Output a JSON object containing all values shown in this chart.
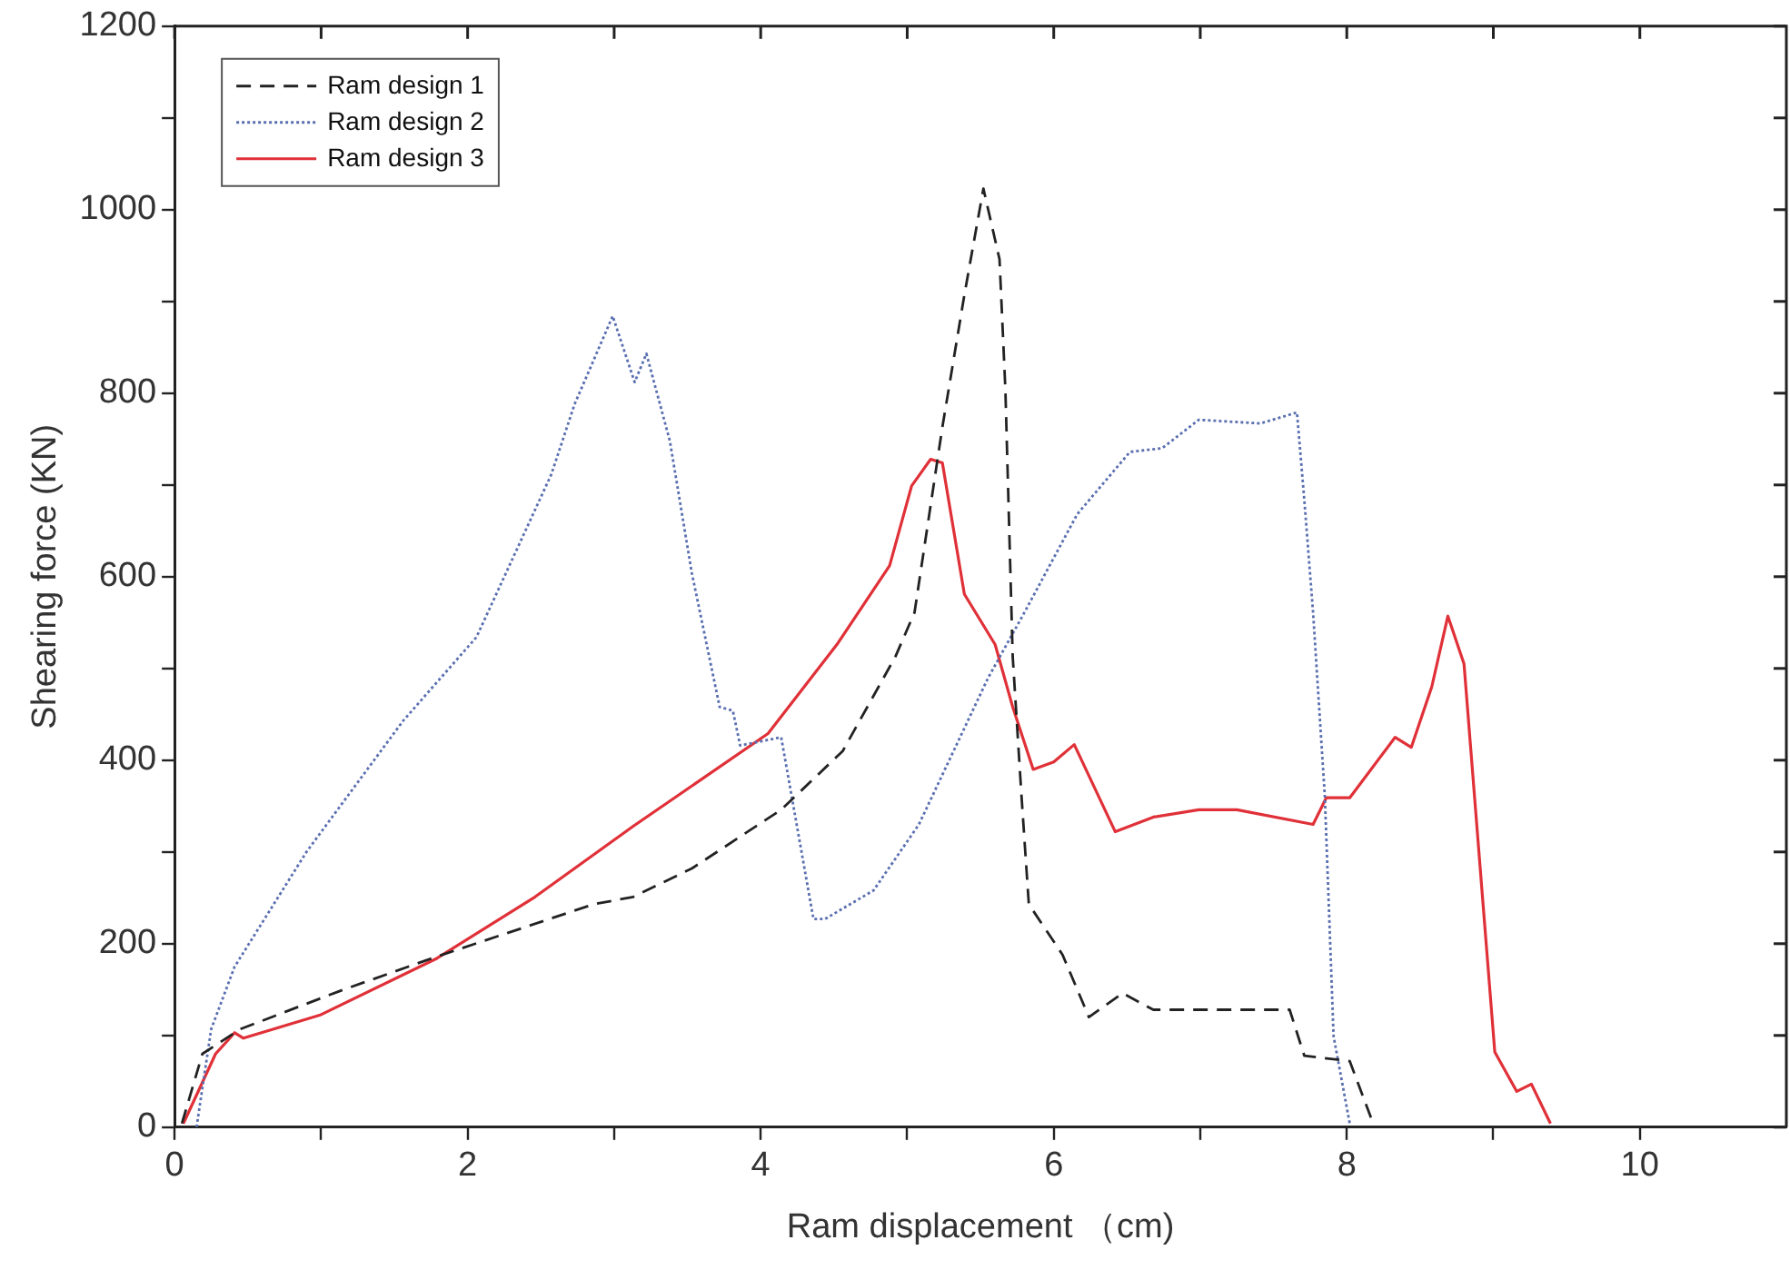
{
  "chart_data": {
    "type": "line",
    "xlabel": "Ram displacement （cm)",
    "ylabel": "Shearing force (KN)",
    "xlim": [
      0,
      11
    ],
    "ylim": [
      0,
      1200
    ],
    "xticks": [
      0,
      {
        "value": 1,
        "label": null
      },
      2,
      {
        "value": 3,
        "label": null
      },
      4,
      {
        "value": 5,
        "label": null
      },
      6,
      {
        "value": 7,
        "label": null
      },
      8,
      {
        "value": 9,
        "label": null
      },
      10
    ],
    "yticks": [
      0,
      {
        "value": 100,
        "label": null
      },
      200,
      {
        "value": 300,
        "label": null
      },
      400,
      {
        "value": 500,
        "label": null
      },
      600,
      {
        "value": 700,
        "label": null
      },
      800,
      {
        "value": 900,
        "label": null
      },
      1000,
      {
        "value": 1100,
        "label": null
      },
      1200
    ],
    "grid": false,
    "legend": "top left",
    "marker": "none",
    "series": [
      {
        "name": "Ram design 1",
        "color": "#222222",
        "line_style": "dashed",
        "x": [
          0.05,
          0.19,
          0.45,
          1.12,
          1.79,
          2.86,
          3.13,
          3.53,
          4.14,
          4.56,
          4.92,
          5.05,
          5.24,
          5.39,
          5.52,
          5.63,
          5.67,
          5.72,
          5.78,
          5.83,
          6.06,
          6.24,
          6.47,
          6.68,
          7.61,
          7.71,
          8.02,
          8.18
        ],
        "values": [
          4,
          80,
          107,
          148,
          186,
          243,
          251,
          282,
          346,
          410,
          513,
          561,
          763,
          907,
          1023,
          946,
          804,
          513,
          361,
          243,
          188,
          120,
          146,
          128,
          128,
          78,
          72,
          4
        ]
      },
      {
        "name": "Ram design 2",
        "color": "#5a6fb0",
        "line_style": "dotted",
        "x": [
          0.15,
          0.25,
          0.41,
          0.9,
          1.56,
          2.06,
          2.57,
          2.73,
          2.99,
          3.14,
          3.22,
          3.38,
          3.53,
          3.72,
          3.81,
          3.86,
          4.14,
          4.36,
          4.44,
          4.77,
          5.08,
          5.55,
          5.8,
          6.16,
          6.52,
          6.74,
          6.99,
          7.41,
          7.66,
          7.71,
          7.77,
          7.85,
          7.91,
          8.02
        ],
        "values": [
          0,
          107,
          175,
          300,
          443,
          534,
          711,
          788,
          884,
          812,
          843,
          748,
          604,
          458,
          454,
          416,
          425,
          227,
          227,
          258,
          330,
          489,
          561,
          668,
          736,
          740,
          771,
          767,
          779,
          684,
          561,
          361,
          99,
          4
        ]
      },
      {
        "name": "Ram design 3",
        "color": "#e03038",
        "line_style": "solid",
        "x": [
          0.06,
          0.28,
          0.41,
          0.47,
          0.99,
          1.79,
          2.46,
          3.13,
          4.05,
          4.52,
          4.88,
          5.03,
          5.16,
          5.24,
          5.39,
          5.6,
          5.72,
          5.86,
          6.0,
          6.14,
          6.42,
          6.68,
          6.99,
          7.25,
          7.77,
          7.86,
          8.02,
          8.33,
          8.44,
          8.58,
          8.69,
          8.8,
          9.01,
          9.16,
          9.26,
          9.39
        ],
        "values": [
          4,
          80,
          103,
          97,
          122,
          184,
          251,
          328,
          429,
          526,
          612,
          699,
          728,
          724,
          581,
          526,
          458,
          390,
          398,
          417,
          322,
          338,
          346,
          346,
          330,
          359,
          359,
          425,
          414,
          480,
          557,
          505,
          82,
          39,
          47,
          4
        ]
      }
    ]
  }
}
